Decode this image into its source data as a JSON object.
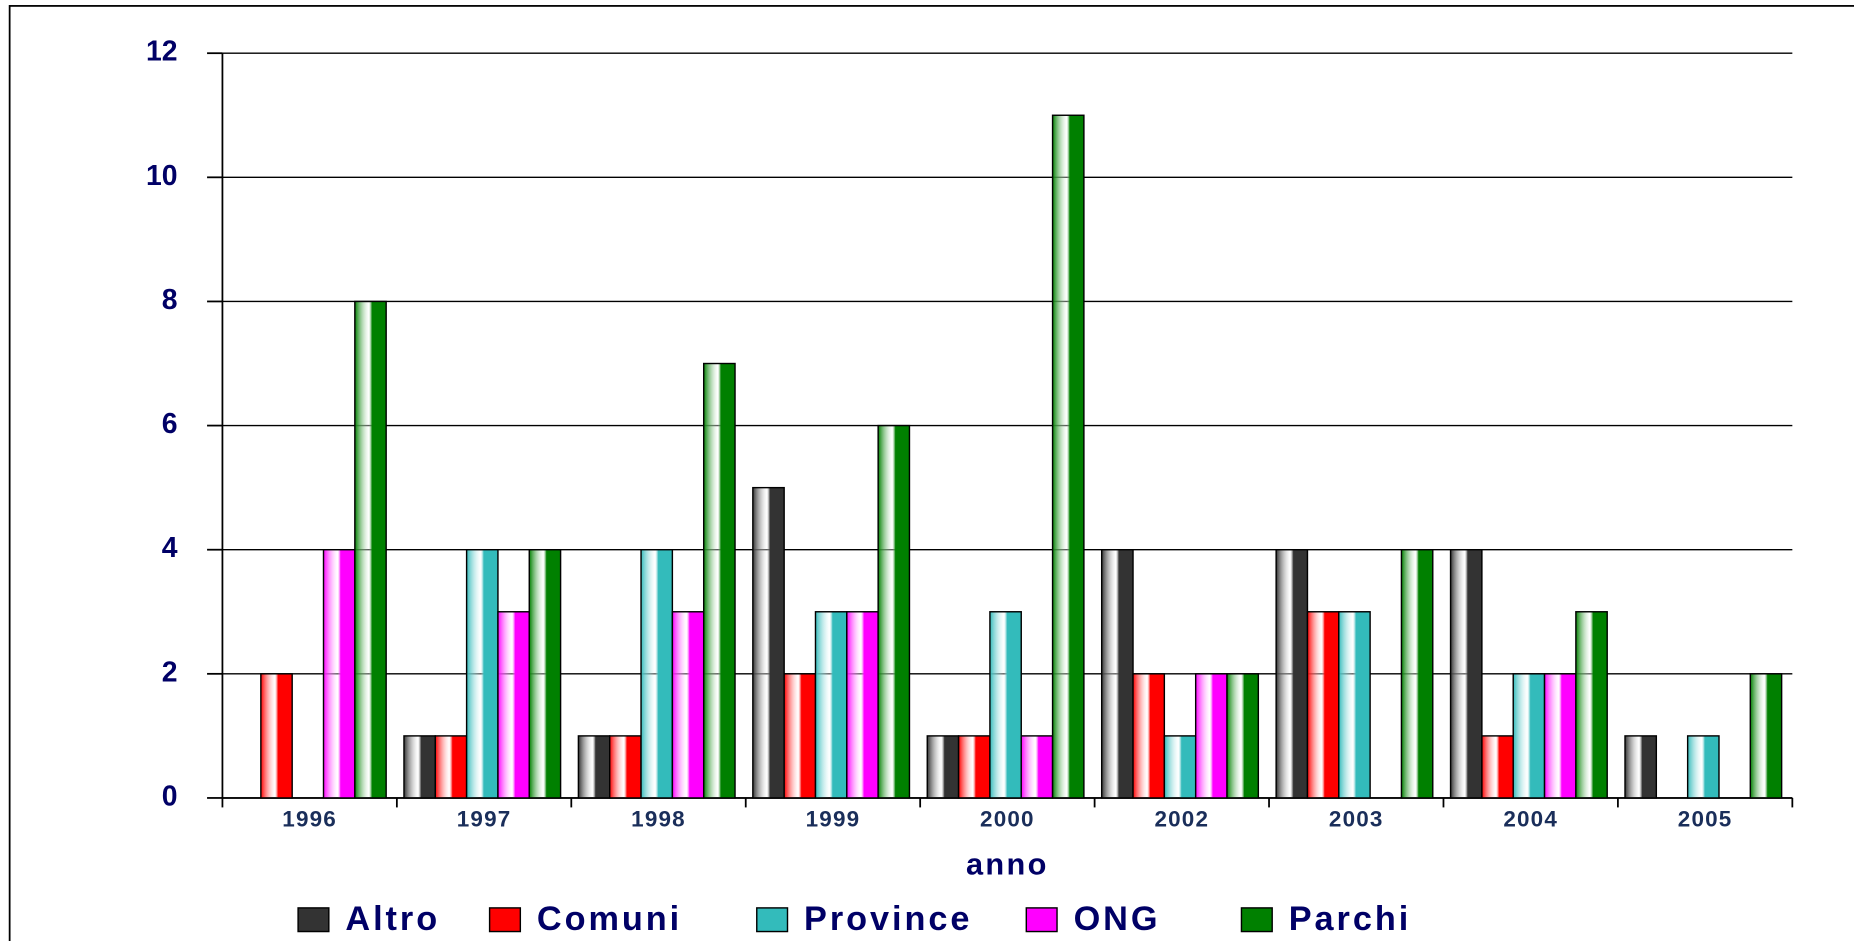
{
  "chart_data": {
    "type": "bar",
    "x_label": "anno",
    "categories": [
      "1996",
      "1997",
      "1998",
      "1999",
      "2000",
      "2002",
      "2003",
      "2004",
      "2005"
    ],
    "series": [
      {
        "name": "Altro",
        "color": "#333333",
        "values": [
          0,
          1,
          1,
          5,
          1,
          4,
          4,
          4,
          1
        ]
      },
      {
        "name": "Comuni",
        "color": "#ff0000",
        "values": [
          2,
          1,
          1,
          2,
          1,
          2,
          3,
          1,
          0
        ]
      },
      {
        "name": "Province",
        "color": "#33bbbb",
        "values": [
          0,
          4,
          4,
          3,
          3,
          1,
          3,
          2,
          1
        ]
      },
      {
        "name": "ONG",
        "color": "#ff00ff",
        "values": [
          4,
          3,
          3,
          3,
          1,
          2,
          0,
          2,
          0
        ]
      },
      {
        "name": "Parchi",
        "color": "#008000",
        "values": [
          8,
          4,
          7,
          6,
          11,
          2,
          4,
          3,
          2
        ]
      }
    ],
    "ylim": [
      0,
      12
    ],
    "yticks": [
      0,
      2,
      4,
      6,
      8,
      10,
      12
    ],
    "grid": true,
    "legend": "bottom"
  }
}
